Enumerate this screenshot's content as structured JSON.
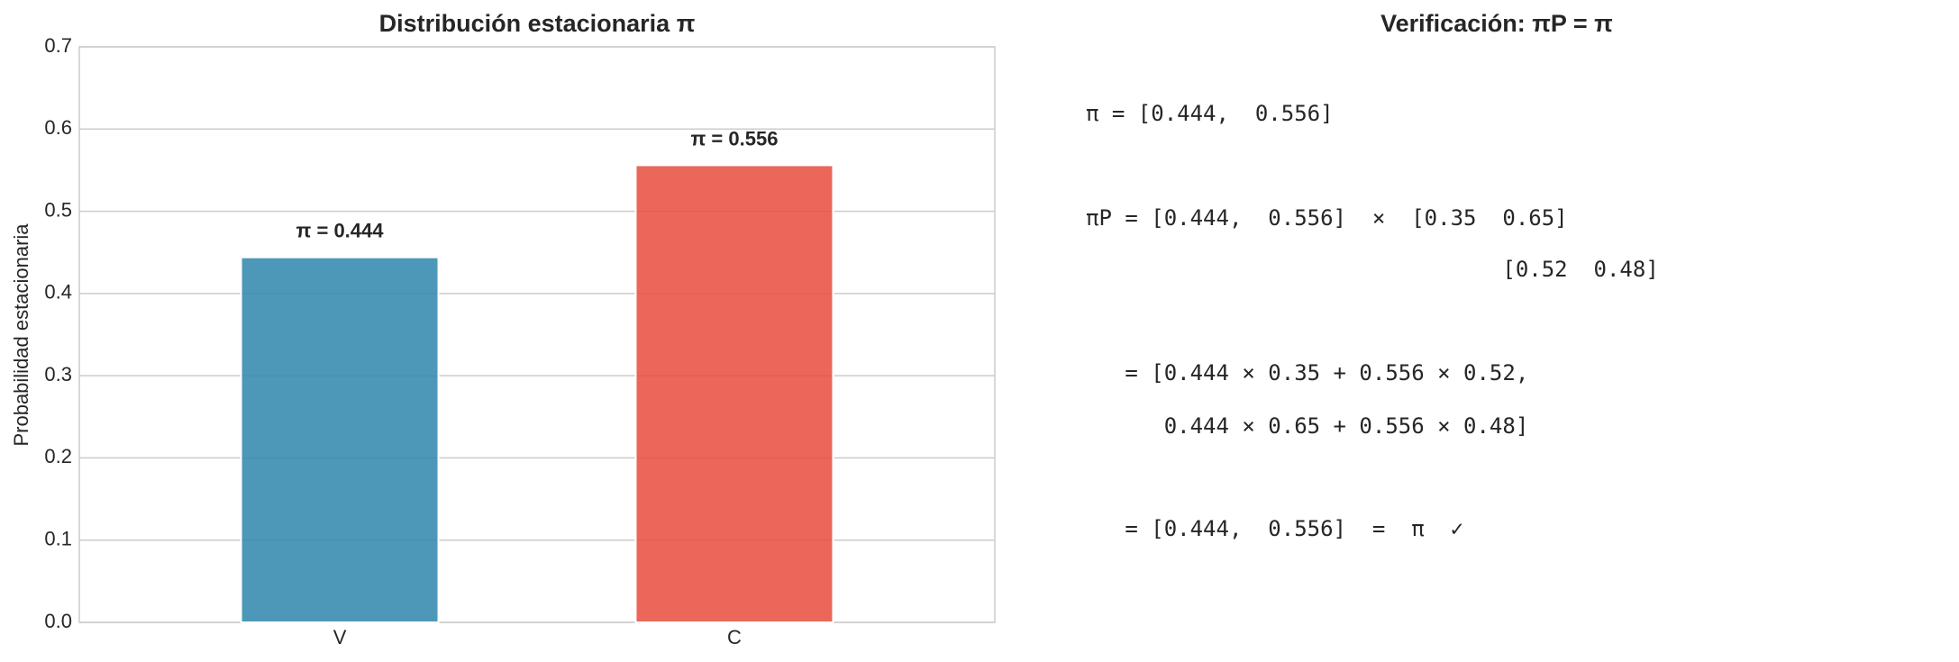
{
  "chart_data": {
    "type": "bar",
    "title": "Distribución estacionaria π",
    "y_label": "Probabilidad estacionaria",
    "categories": [
      "V",
      "C"
    ],
    "values": [
      0.444,
      0.556
    ],
    "value_labels": [
      "π = 0.444",
      "π = 0.556"
    ],
    "colors": [
      "#2e86ab",
      "#e74c3c"
    ],
    "ylim": [
      0,
      0.7
    ],
    "yticks": [
      {
        "value": 0,
        "label": "0.0"
      },
      0.1,
      0.2,
      0.3,
      0.4,
      0.5,
      0.6,
      0.7
    ],
    "grid": true
  },
  "verification": {
    "title": "Verificación: πP = π",
    "lines": [
      "π = [0.444,  0.556]",
      "πP = [0.444,  0.556]  ×  [0.35  0.65]",
      "                                [0.52  0.48]",
      "   = [0.444 × 0.35 + 0.556 × 0.52,",
      "      0.444 × 0.65 + 0.556 × 0.48]",
      "   = [0.444,  0.556]  =  π  ✓"
    ]
  }
}
